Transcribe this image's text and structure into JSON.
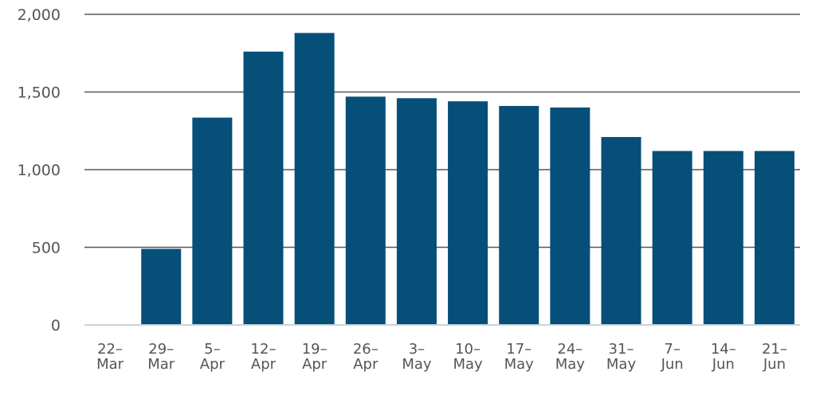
{
  "chart_data": {
    "type": "bar",
    "categories": [
      [
        "22–",
        "Mar"
      ],
      [
        "29–",
        "Mar"
      ],
      [
        "5–",
        "Apr"
      ],
      [
        "12–",
        "Apr"
      ],
      [
        "19–",
        "Apr"
      ],
      [
        "26–",
        "Apr"
      ],
      [
        "3–",
        "May"
      ],
      [
        "10–",
        "May"
      ],
      [
        "17–",
        "May"
      ],
      [
        "24–",
        "May"
      ],
      [
        "31–",
        "May"
      ],
      [
        "7–",
        "Jun"
      ],
      [
        "14–",
        "Jun"
      ],
      [
        "21–",
        "Jun"
      ]
    ],
    "values": [
      0,
      490,
      1335,
      1760,
      1880,
      1470,
      1460,
      1440,
      1410,
      1400,
      1210,
      1120,
      1120,
      1120
    ],
    "yticks": [
      0,
      500,
      1000,
      1500,
      2000
    ],
    "ytick_labels": [
      "0",
      "500",
      "1,000",
      "1,500",
      "2,000"
    ],
    "ylim": [
      0,
      2000
    ],
    "grid": true,
    "bar_color": "#064f78",
    "grid_color": "#555555",
    "axis_color": "#c8d4dc"
  }
}
